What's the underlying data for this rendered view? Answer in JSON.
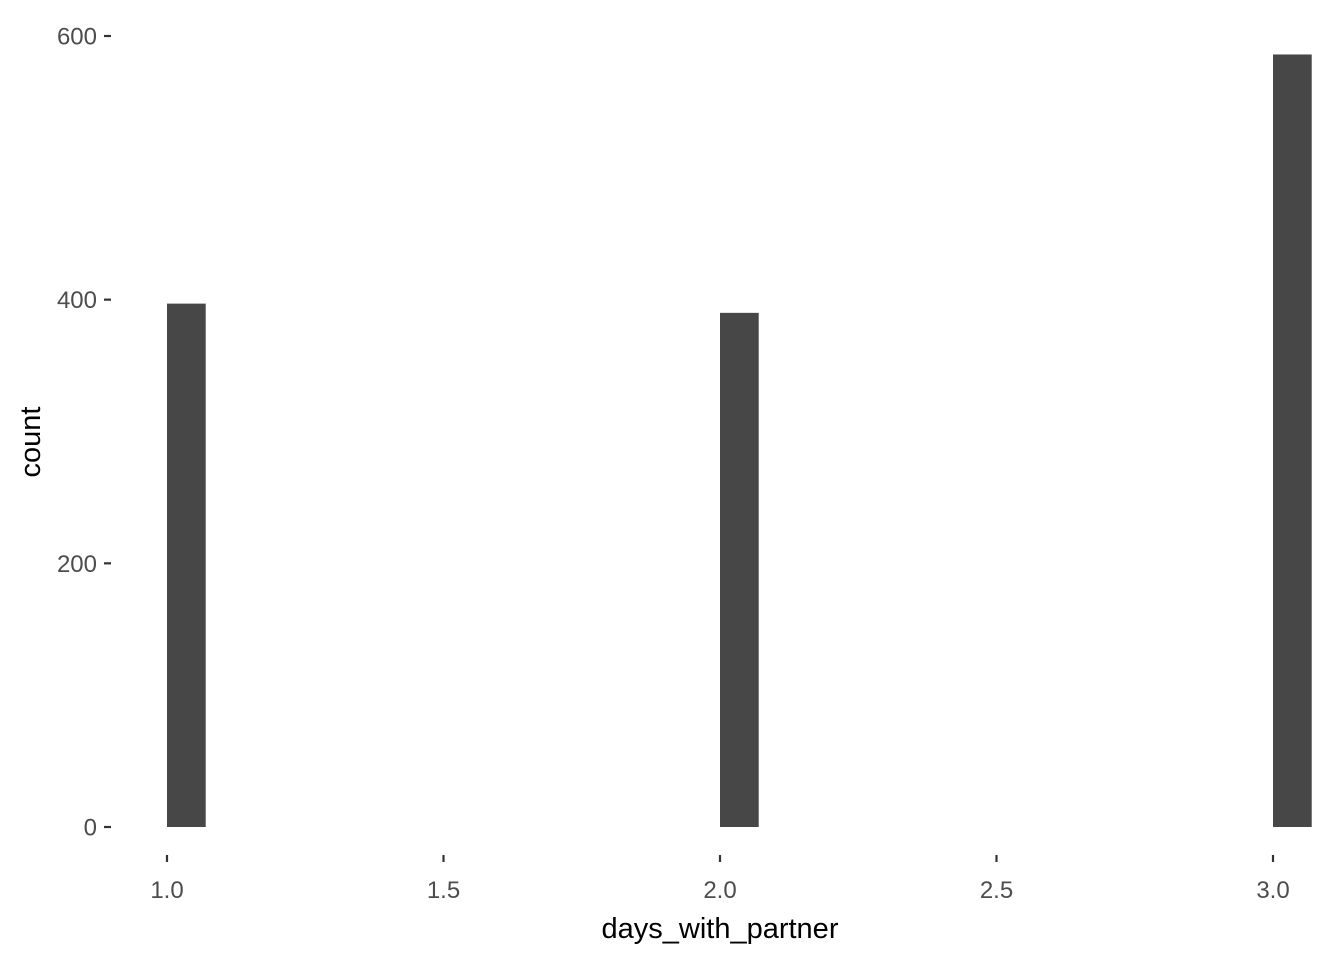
{
  "chart_data": {
    "type": "bar",
    "subtype": "histogram",
    "title": "",
    "xlabel": "days_with_partner",
    "ylabel": "count",
    "x": [
      1.0,
      2.0,
      3.0
    ],
    "values": [
      397,
      390,
      586
    ],
    "bin_width": 0.07,
    "xlim": [
      0.95,
      3.05
    ],
    "ylim": [
      0,
      600
    ],
    "x_ticks": [
      1.0,
      1.5,
      2.0,
      2.5,
      3.0
    ],
    "x_tick_labels": [
      "1.0",
      "1.5",
      "2.0",
      "2.5",
      "3.0"
    ],
    "y_ticks": [
      0,
      200,
      400,
      600
    ],
    "y_tick_labels": [
      "0",
      "200",
      "400",
      "600"
    ],
    "grid": false,
    "legend": "none",
    "colors": {
      "bar": "#474747",
      "tick_text": "#4d4d4d",
      "axis_title": "#000000",
      "background": "#ffffff"
    }
  }
}
